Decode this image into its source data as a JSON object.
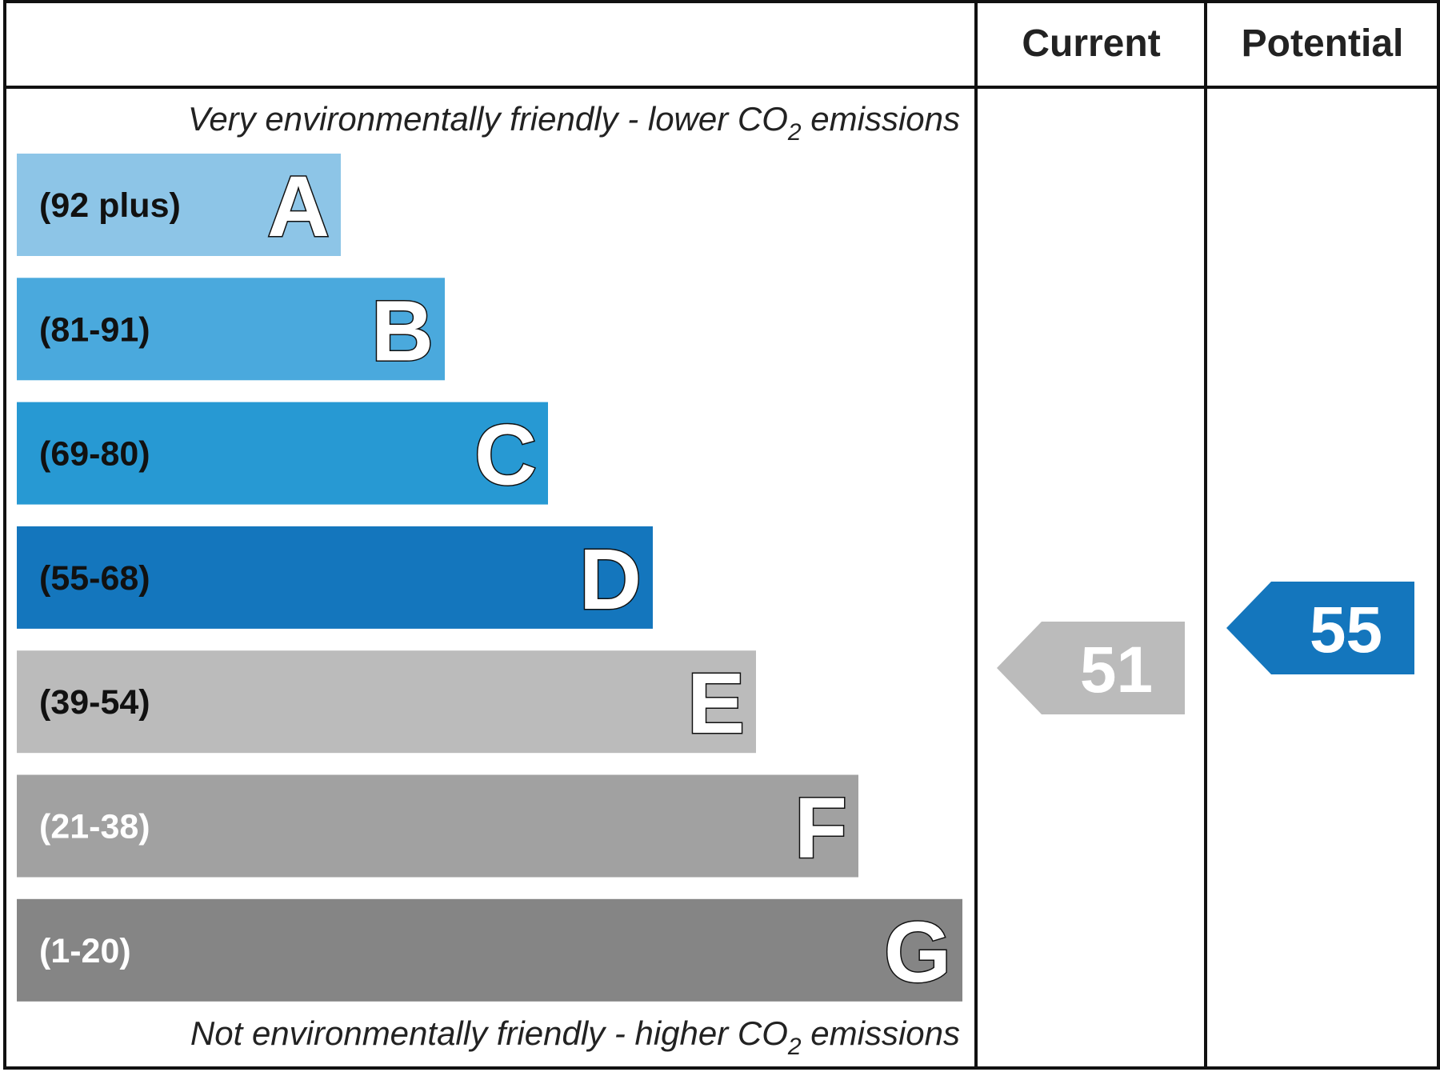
{
  "chart_data": {
    "type": "bar",
    "header": {
      "current": "Current",
      "potential": "Potential"
    },
    "top_note": {
      "prefix": "Very environmentally friendly - lower CO",
      "sub": "2",
      "suffix": " emissions"
    },
    "bottom_note": {
      "prefix": "Not environmentally friendly - higher CO",
      "sub": "2",
      "suffix": " emissions"
    },
    "bands": [
      {
        "letter": "A",
        "range": "(92 plus)",
        "color": "#8dc5e7",
        "text_color": "#111111"
      },
      {
        "letter": "B",
        "range": "(81-91)",
        "color": "#4aa9dd",
        "text_color": "#111111"
      },
      {
        "letter": "C",
        "range": "(69-80)",
        "color": "#2799d3",
        "text_color": "#111111"
      },
      {
        "letter": "D",
        "range": "(55-68)",
        "color": "#1476bd",
        "text_color": "#111111"
      },
      {
        "letter": "E",
        "range": "(39-54)",
        "color": "#bbbbbb",
        "text_color": "#111111"
      },
      {
        "letter": "F",
        "range": "(21-38)",
        "color": "#a1a1a1",
        "text_color": "#ffffff"
      },
      {
        "letter": "G",
        "range": "(1-20)",
        "color": "#858585",
        "text_color": "#ffffff"
      }
    ],
    "current": {
      "value": "51",
      "band": "E",
      "color": "#bbbbbb"
    },
    "potential": {
      "value": "55",
      "band": "D",
      "color": "#1476bd"
    }
  }
}
